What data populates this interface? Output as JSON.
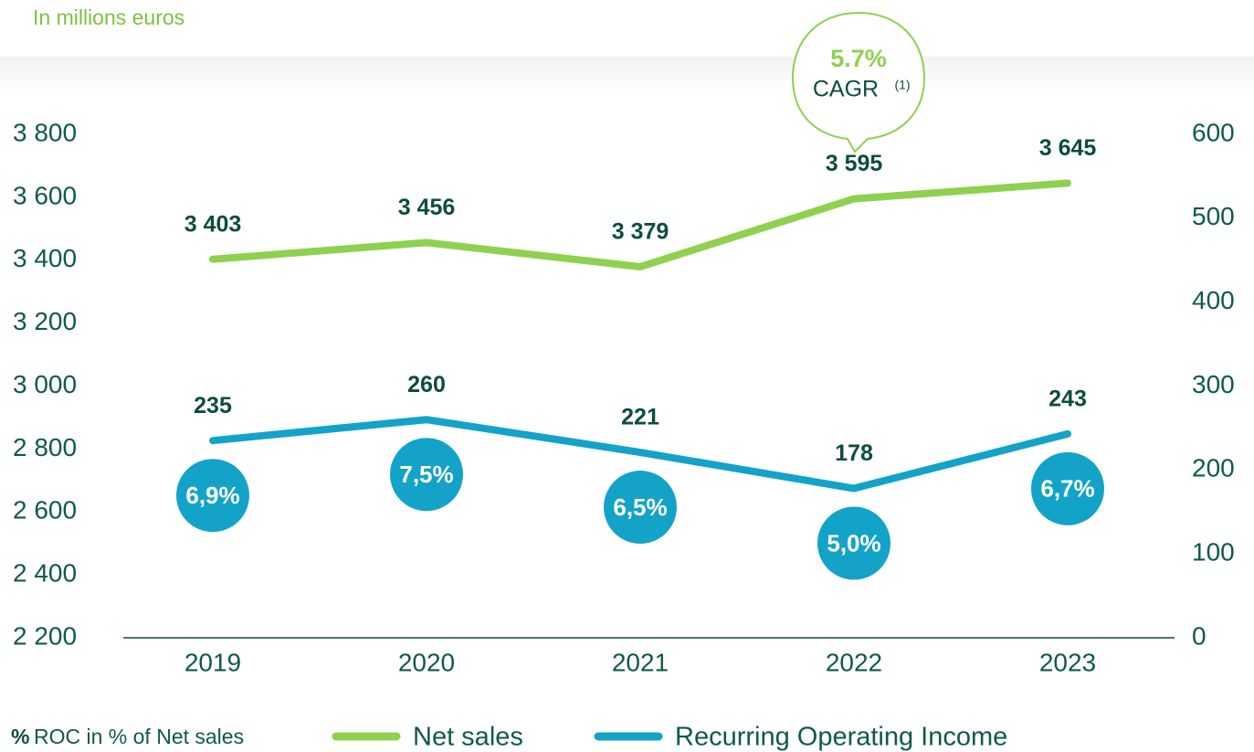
{
  "chart_data": {
    "type": "line",
    "subtitle": "In millions euros",
    "categories": [
      "2019",
      "2020",
      "2021",
      "2022",
      "2023"
    ],
    "series": [
      {
        "name": "Net sales",
        "color": "#8fd14f",
        "values": [
          3403,
          3456,
          3379,
          3595,
          3645
        ],
        "value_labels": [
          "3 403",
          "3 456",
          "3 379",
          "3 595",
          "3 645"
        ]
      },
      {
        "name": "Recurring Operating Income",
        "color": "#13a3c9",
        "axis": "y2",
        "values": [
          235,
          260,
          221,
          178,
          243
        ]
      }
    ],
    "roc_margin": {
      "symbol": "%",
      "name": "ROC in % of Net sales",
      "color": "#13a3c9",
      "values": [
        6.9,
        7.5,
        6.5,
        5.0,
        6.7
      ],
      "value_labels": [
        "6,9%",
        "7,5%",
        "6,5%",
        "5,0%",
        "6,7%"
      ]
    },
    "annotation": {
      "label": "5.7%",
      "text": "CAGR",
      "footnote": "(1)"
    },
    "ylim": [
      2200,
      3800
    ],
    "yticks": [
      {
        "value": 2200,
        "label": "2 200"
      },
      {
        "value": 2400,
        "label": "2 400"
      },
      {
        "value": 2600,
        "label": "2 600"
      },
      {
        "value": 2800,
        "label": "2 800"
      },
      {
        "value": 3000,
        "label": "3 000"
      },
      {
        "value": 3200,
        "label": "3 200"
      },
      {
        "value": 3400,
        "label": "3 400"
      },
      {
        "value": 3600,
        "label": "3 600"
      },
      {
        "value": 3800,
        "label": "3 800"
      }
    ],
    "y2lim": [
      0,
      600
    ],
    "y2ticks": [
      0,
      100,
      200,
      300,
      400,
      500,
      600
    ]
  }
}
